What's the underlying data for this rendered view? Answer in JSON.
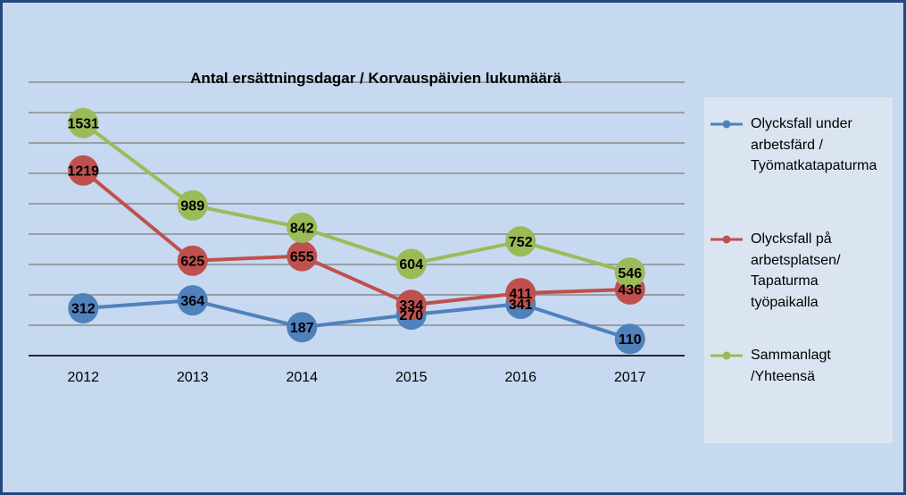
{
  "chart_data": {
    "type": "line",
    "title": "Antal ersättningsdagar / Korvauspäivien lukumäärä",
    "categories": [
      "2012",
      "2013",
      "2014",
      "2015",
      "2016",
      "2017"
    ],
    "ylim": [
      0,
      1800
    ],
    "y_major_unit": 200,
    "grid": "horizontal",
    "data_labels": true,
    "legend_position": "right",
    "series": [
      {
        "name": "Olycksfall under\narbetsfärd /\nTyömatkatapaturma",
        "color": "#4f81bd",
        "values": [
          312,
          364,
          187,
          270,
          341,
          110
        ]
      },
      {
        "name": "Olycksfall på\narbetsplatsen/\nTapaturma\ntyöpaikalla",
        "color": "#c0504d",
        "values": [
          1219,
          625,
          655,
          334,
          411,
          436
        ]
      },
      {
        "name": "Sammanlagt\n/Yhteensä",
        "color": "#9bbb59",
        "values": [
          1531,
          989,
          842,
          604,
          752,
          546
        ]
      }
    ]
  },
  "colors": {
    "background": "#c6d9f0",
    "border": "#24477f",
    "legend_background": "#dbe5f1",
    "gridline": "#8c8c8c",
    "axis": "#262626"
  }
}
